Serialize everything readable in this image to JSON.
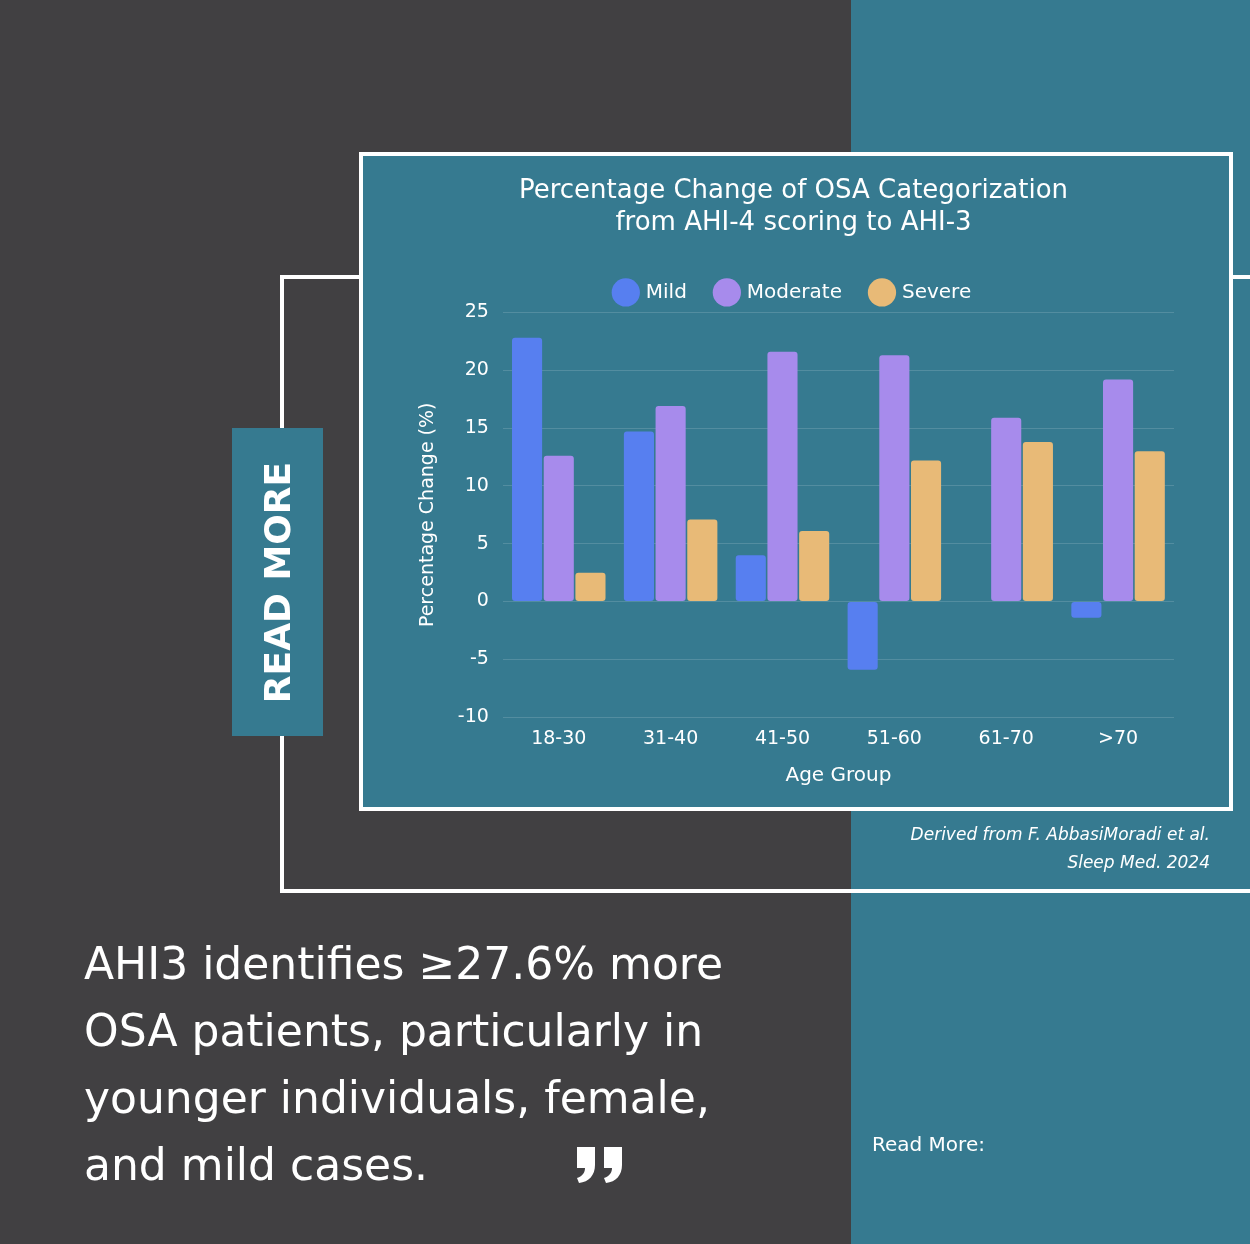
{
  "chart_data": {
    "type": "bar",
    "title": [
      "Percentage Change of OSA Categorization",
      "from AHI-4 scoring to AHI-3"
    ],
    "xlabel": "Age Group",
    "ylabel": "Percentage Change (%)",
    "categories": [
      "18-30",
      "31-40",
      "41-50",
      "51-60",
      "61-70",
      ">70"
    ],
    "series": [
      {
        "name": "Mild",
        "color": "#577ff0",
        "values": [
          22.8,
          14.7,
          4.0,
          -5.9,
          0,
          -1.4
        ]
      },
      {
        "name": "Moderate",
        "color": "#a78bec",
        "values": [
          12.6,
          16.9,
          21.6,
          21.3,
          15.9,
          19.2
        ]
      },
      {
        "name": "Severe",
        "color": "#e8ba77",
        "values": [
          2.5,
          7.1,
          6.1,
          12.2,
          13.8,
          13.0
        ]
      }
    ],
    "ylim": [
      -10,
      25
    ],
    "yticks": [
      -10,
      -5,
      0,
      5,
      10,
      15,
      20,
      25
    ],
    "grid": "y",
    "legend": "top",
    "annotations": [
      "READ MORE",
      "Derived from F. AbbasiMoradi et al.\nSleep Med. 2024",
      "AHI3 identifies  ≥27.6% more OSA patients, particularly in younger individuals, female, and mild cases.",
      "Read More:"
    ]
  }
}
